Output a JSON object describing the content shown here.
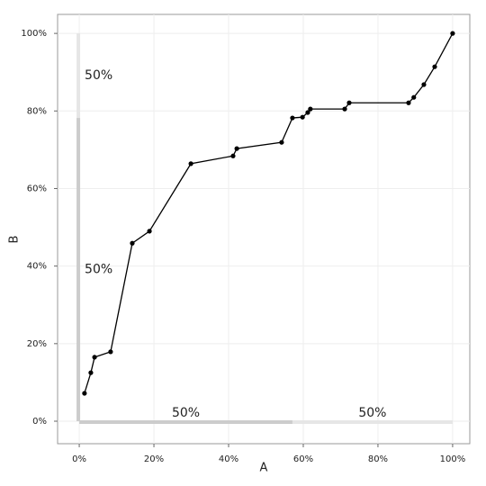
{
  "chart_data": {
    "type": "line",
    "x_label": "A",
    "y_label": "B",
    "x": [
      1.4,
      3.1,
      4.1,
      8.4,
      14.2,
      18.8,
      29.9,
      41.2,
      42.2,
      54.2,
      57.1,
      59.8,
      61.2,
      61.9,
      71.1,
      72.3,
      88.2,
      89.6,
      92.3,
      95.2,
      100
    ],
    "values": [
      7.2,
      12.5,
      16.5,
      17.9,
      45.9,
      49.0,
      66.4,
      68.4,
      70.3,
      71.9,
      78.2,
      78.4,
      79.6,
      80.5,
      80.5,
      82.1,
      82.1,
      83.5,
      86.8,
      91.4,
      100
    ],
    "color": "#000000",
    "xlim": [
      -5.8,
      104.6
    ],
    "ylim": [
      -5.8,
      104.9
    ],
    "xticks": [
      {
        "value": 0,
        "label": "0%"
      },
      {
        "value": 20,
        "label": "20%"
      },
      {
        "value": 40,
        "label": "40%"
      },
      {
        "value": 60,
        "label": "60%"
      },
      {
        "value": 80,
        "label": "80%"
      },
      {
        "value": 100,
        "label": "100%"
      }
    ],
    "yticks": [
      {
        "value": 0,
        "label": "0%"
      },
      {
        "value": 20,
        "label": "20%"
      },
      {
        "value": 40,
        "label": "40%"
      },
      {
        "value": 60,
        "label": "60%"
      },
      {
        "value": 80,
        "label": "80%"
      },
      {
        "value": 100,
        "label": "100%"
      }
    ],
    "grid": true,
    "x_segments": [
      {
        "from": 0,
        "to": 57.1,
        "label": "50%",
        "color": "#cccccc"
      },
      {
        "from": 57.1,
        "to": 100,
        "label": "50%",
        "color": "#e6e6e6"
      }
    ],
    "y_segments": [
      {
        "from": 0,
        "to": 78.2,
        "label": "50%",
        "color": "#cccccc"
      },
      {
        "from": 78.2,
        "to": 100,
        "label": "50%",
        "color": "#e6e6e6"
      }
    ]
  }
}
